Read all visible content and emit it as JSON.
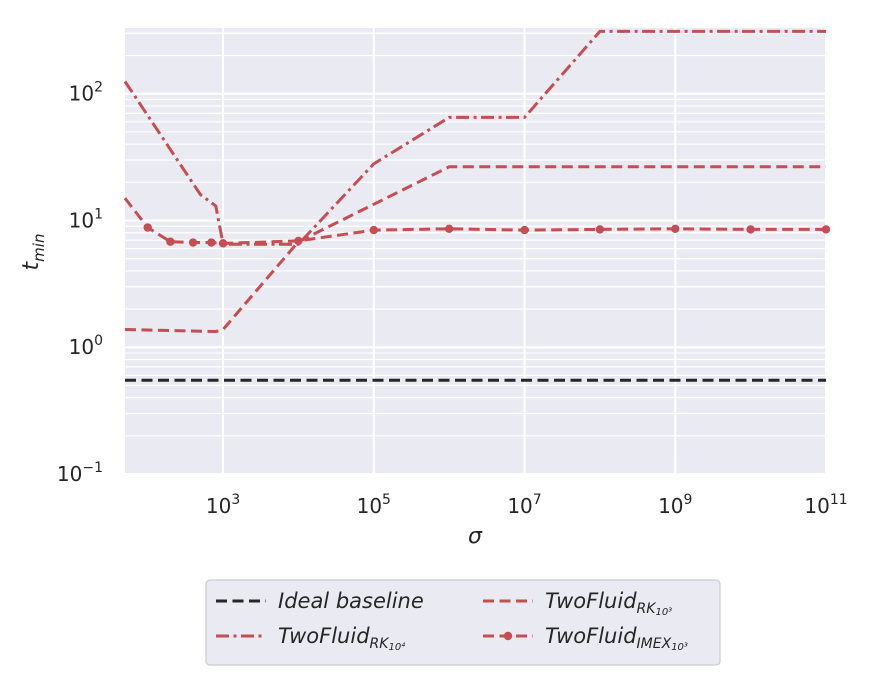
{
  "chart_data": {
    "type": "line",
    "xlabel": "σ",
    "ylabel": "t_min",
    "x_scale": "log",
    "y_scale": "log",
    "xlim": [
      50,
      100000000000
    ],
    "ylim": [
      0.1,
      330
    ],
    "grid": true,
    "legend_position": "bottom-center",
    "x_ticks": [
      {
        "value": 1000,
        "base": "10",
        "exp": "3"
      },
      {
        "value": 100000,
        "base": "10",
        "exp": "5"
      },
      {
        "value": 10000000,
        "base": "10",
        "exp": "7"
      },
      {
        "value": 1000000000,
        "base": "10",
        "exp": "9"
      },
      {
        "value": 100000000000,
        "base": "10",
        "exp": "11"
      }
    ],
    "y_ticks": [
      {
        "value": 0.1,
        "base": "10",
        "exp": "−1"
      },
      {
        "value": 1,
        "base": "10",
        "exp": "0"
      },
      {
        "value": 10,
        "base": "10",
        "exp": "1"
      },
      {
        "value": 100,
        "base": "10",
        "exp": "2"
      }
    ],
    "series": [
      {
        "name": "Ideal baseline",
        "label_main": "Ideal baseline",
        "label_sub": "",
        "label_subsup": "",
        "color": "#262626",
        "style": "dashed",
        "marker": false,
        "x": [
          50,
          100000000000
        ],
        "y": [
          0.55,
          0.55
        ]
      },
      {
        "name": "TwoFluid_RK_10^4",
        "label_main": "TwoFluid",
        "label_sub": "RK",
        "label_subsup": "10⁴",
        "color": "#c44e52",
        "style": "dashdot",
        "marker": false,
        "x": [
          50,
          500,
          800,
          1000,
          10000,
          100000,
          1000000,
          10000000,
          100000000,
          100000000000
        ],
        "y": [
          125,
          16,
          13,
          6.5,
          6.5,
          28,
          65,
          65,
          310,
          310
        ]
      },
      {
        "name": "TwoFluid_RK_10^3",
        "label_main": "TwoFluid",
        "label_sub": "RK",
        "label_subsup": "10³",
        "color": "#c44e52",
        "style": "dashed",
        "marker": false,
        "x": [
          50,
          800,
          1000,
          10000,
          1000000,
          100000000000
        ],
        "y": [
          1.38,
          1.33,
          1.38,
          6.8,
          26.5,
          26.5
        ]
      },
      {
        "name": "TwoFluid_IMEX_10^3",
        "label_main": "TwoFluid",
        "label_sub": "IMEX",
        "label_subsup": "10³",
        "color": "#c44e52",
        "style": "dashed",
        "marker": true,
        "x": [
          50,
          100,
          200,
          400,
          700,
          1000,
          10000,
          100000,
          1000000,
          10000000,
          100000000,
          1000000000,
          10000000000,
          100000000000
        ],
        "y": [
          15,
          8.8,
          6.8,
          6.7,
          6.7,
          6.6,
          6.9,
          8.4,
          8.6,
          8.4,
          8.5,
          8.6,
          8.5,
          8.5
        ]
      }
    ]
  }
}
